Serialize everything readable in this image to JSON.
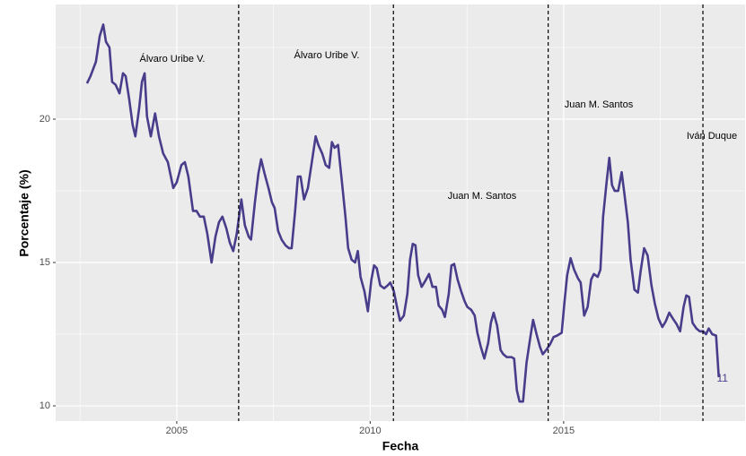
{
  "chart_data": {
    "type": "line",
    "xlabel": "Fecha",
    "ylabel": "Porcentaje (%)",
    "xlim": [
      2001.87,
      2019.69
    ],
    "ylim": [
      9.47,
      24.0
    ],
    "xticks": [
      2005,
      2010,
      2015
    ],
    "yticks": [
      10,
      15,
      20
    ],
    "x_minor_ticks": [
      2002.5,
      2007.5,
      2012.5,
      2017.5
    ],
    "y_minor_ticks": [
      12.5,
      17.5,
      22.5
    ],
    "grid": true,
    "vlines": [
      2006.6,
      2010.6,
      2014.6,
      2018.6
    ],
    "annotations": [
      "Álvaro Uribe V.",
      "Álvaro Uribe V.",
      "Juan M. Santos",
      "Juan M. Santos",
      "Iván Duque"
    ],
    "series": [
      {
        "color": "#483d8b",
        "x": [
          2002.68,
          2002.77,
          2002.91,
          2003.01,
          2003.1,
          2003.17,
          2003.26,
          2003.33,
          2003.42,
          2003.52,
          2003.61,
          2003.68,
          2003.77,
          2003.86,
          2003.93,
          2004.03,
          2004.1,
          2004.17,
          2004.23,
          2004.33,
          2004.44,
          2004.54,
          2004.65,
          2004.77,
          2004.91,
          2005.0,
          2005.12,
          2005.21,
          2005.3,
          2005.42,
          2005.51,
          2005.6,
          2005.7,
          2005.79,
          2005.9,
          2006.0,
          2006.09,
          2006.18,
          2006.28,
          2006.37,
          2006.46,
          2006.55,
          2006.67,
          2006.76,
          2006.86,
          2006.92,
          2007.02,
          2007.11,
          2007.18,
          2007.27,
          2007.37,
          2007.46,
          2007.53,
          2007.62,
          2007.71,
          2007.81,
          2007.9,
          2007.97,
          2008.06,
          2008.13,
          2008.2,
          2008.29,
          2008.39,
          2008.48,
          2008.59,
          2008.66,
          2008.76,
          2008.85,
          2008.94,
          2009.01,
          2009.08,
          2009.17,
          2009.27,
          2009.36,
          2009.43,
          2009.52,
          2009.61,
          2009.68,
          2009.75,
          2009.85,
          2009.94,
          2010.03,
          2010.1,
          2010.17,
          2010.26,
          2010.36,
          2010.45,
          2010.52,
          2010.61,
          2010.7,
          2010.77,
          2010.87,
          2010.96,
          2011.03,
          2011.1,
          2011.17,
          2011.24,
          2011.33,
          2011.42,
          2011.52,
          2011.61,
          2011.7,
          2011.77,
          2011.86,
          2011.93,
          2012.03,
          2012.1,
          2012.17,
          2012.26,
          2012.35,
          2012.44,
          2012.51,
          2012.61,
          2012.7,
          2012.77,
          2012.86,
          2012.95,
          2013.05,
          2013.12,
          2013.19,
          2013.28,
          2013.37,
          2013.44,
          2013.53,
          2013.65,
          2013.72,
          2013.79,
          2013.86,
          2013.95,
          2014.04,
          2014.14,
          2014.21,
          2014.3,
          2014.39,
          2014.46,
          2014.55,
          2014.65,
          2014.74,
          2014.83,
          2014.95,
          2015.02,
          2015.09,
          2015.18,
          2015.27,
          2015.37,
          2015.44,
          2015.53,
          2015.62,
          2015.71,
          2015.78,
          2015.88,
          2015.95,
          2016.02,
          2016.11,
          2016.18,
          2016.25,
          2016.32,
          2016.41,
          2016.5,
          2016.57,
          2016.66,
          2016.73,
          2016.83,
          2016.92,
          2016.99,
          2017.08,
          2017.17,
          2017.27,
          2017.36,
          2017.45,
          2017.55,
          2017.64,
          2017.73,
          2017.82,
          2017.92,
          2018.01,
          2018.1,
          2018.17,
          2018.24,
          2018.33,
          2018.43,
          2018.52,
          2018.61,
          2018.68,
          2018.75,
          2018.84,
          2018.94,
          2019.01
        ],
        "values": [
          21.25,
          21.5,
          22.0,
          22.9,
          23.3,
          22.7,
          22.5,
          21.3,
          21.2,
          20.9,
          21.6,
          21.5,
          20.7,
          19.8,
          19.4,
          20.4,
          21.3,
          21.6,
          20.1,
          19.4,
          20.2,
          19.4,
          18.8,
          18.5,
          17.6,
          17.8,
          18.4,
          18.5,
          18.0,
          16.8,
          16.8,
          16.6,
          16.6,
          16.0,
          15.0,
          15.9,
          16.4,
          16.6,
          16.2,
          15.7,
          15.4,
          16.0,
          17.2,
          16.3,
          15.9,
          15.8,
          17.1,
          18.1,
          18.6,
          18.1,
          17.6,
          17.1,
          16.9,
          16.1,
          15.8,
          15.6,
          15.5,
          15.5,
          16.8,
          18.0,
          18.0,
          17.2,
          17.6,
          18.4,
          19.4,
          19.1,
          18.8,
          18.4,
          18.3,
          19.2,
          19.0,
          19.1,
          17.8,
          16.6,
          15.5,
          15.1,
          15.0,
          15.4,
          14.5,
          14.0,
          13.3,
          14.4,
          14.9,
          14.8,
          14.2,
          14.1,
          14.2,
          14.3,
          14.0,
          13.4,
          12.97,
          13.15,
          13.9,
          15.1,
          15.65,
          15.6,
          14.55,
          14.15,
          14.35,
          14.6,
          14.15,
          14.15,
          13.5,
          13.35,
          13.1,
          13.9,
          14.9,
          14.95,
          14.4,
          14.0,
          13.65,
          13.45,
          13.35,
          13.15,
          12.55,
          12.05,
          11.65,
          12.2,
          12.9,
          13.25,
          12.8,
          11.95,
          11.8,
          11.7,
          11.7,
          11.65,
          10.55,
          10.15,
          10.15,
          11.5,
          12.4,
          13.0,
          12.5,
          12.05,
          11.8,
          11.95,
          12.15,
          12.4,
          12.45,
          12.55,
          13.6,
          14.55,
          15.15,
          14.75,
          14.45,
          14.3,
          13.15,
          13.45,
          14.4,
          14.6,
          14.5,
          14.75,
          16.6,
          17.8,
          18.65,
          17.7,
          17.5,
          17.5,
          18.15,
          17.4,
          16.4,
          15.1,
          14.05,
          13.95,
          14.7,
          15.5,
          15.25,
          14.2,
          13.55,
          13.05,
          12.75,
          12.95,
          13.25,
          13.05,
          12.85,
          12.6,
          13.45,
          13.85,
          13.8,
          12.9,
          12.7,
          12.6,
          12.6,
          12.5,
          12.7,
          12.5,
          12.45,
          11
        ]
      }
    ]
  }
}
